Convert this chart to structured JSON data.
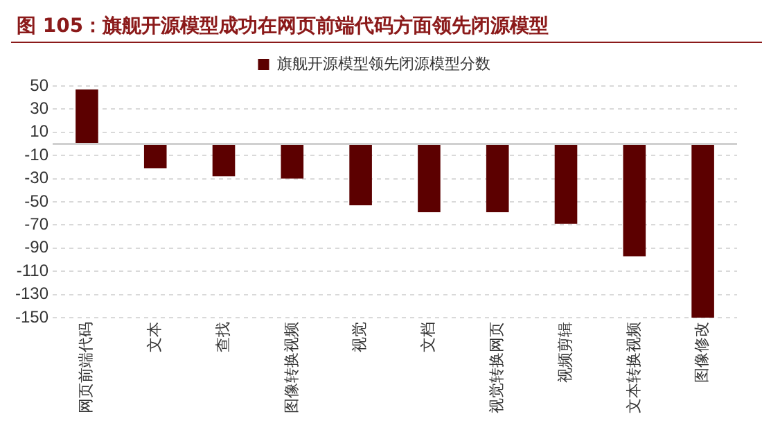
{
  "chart_data": {
    "type": "bar",
    "title": "图 105：旗舰开源模型成功在网页前端代码方面领先闭源模型",
    "categories": [
      "网页前端代码",
      "文本",
      "查找",
      "图像转换视频",
      "视觉",
      "文档",
      "视觉转换网页",
      "视频剪辑",
      "文本转换视频",
      "图像修改"
    ],
    "series": [
      {
        "name": "旗舰开源模型领先闭源模型分数",
        "color": "#5c0000",
        "values": [
          47,
          -21,
          -28,
          -30,
          -53,
          -59,
          -59,
          -69,
          -97,
          -150
        ]
      }
    ],
    "ylim": [
      -150,
      50
    ],
    "yticks": [
      50,
      30,
      10,
      -10,
      -30,
      -50,
      -70,
      -90,
      -110,
      -130,
      -150
    ],
    "grid": "y",
    "legend": "top"
  }
}
